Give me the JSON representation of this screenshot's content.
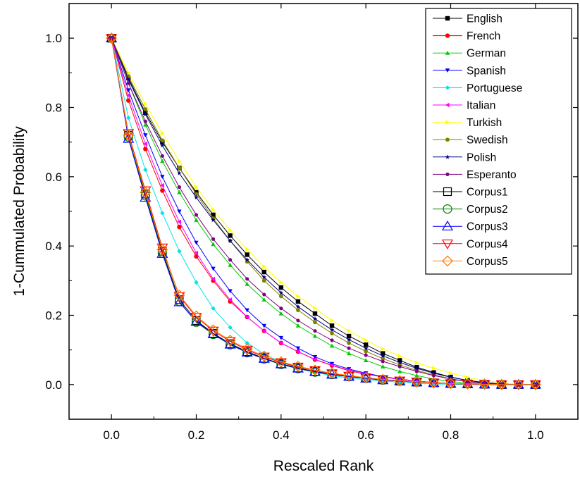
{
  "chart_data": {
    "type": "line",
    "title": "",
    "xlabel": "Rescaled Rank",
    "ylabel": "1-Cummulated Probability",
    "xlim": [
      -0.1,
      1.1
    ],
    "ylim": [
      -0.1,
      1.1
    ],
    "xticks": [
      "0.0",
      "0.2",
      "0.4",
      "0.6",
      "0.8",
      "1.0"
    ],
    "yticks": [
      "0.0",
      "0.2",
      "0.4",
      "0.6",
      "0.8",
      "1.0"
    ],
    "grid": false,
    "legend_position": "top-right",
    "x": [
      0,
      0.04,
      0.08,
      0.12,
      0.16,
      0.2,
      0.24,
      0.28,
      0.32,
      0.36,
      0.4,
      0.44,
      0.48,
      0.52,
      0.56,
      0.6,
      0.64,
      0.68,
      0.72,
      0.76,
      0.8,
      0.84,
      0.88,
      0.92,
      0.96,
      1.0
    ],
    "series": [
      {
        "name": "English",
        "color": "#000000",
        "marker": "square-filled",
        "values": [
          1.0,
          0.885,
          0.785,
          0.7,
          0.625,
          0.555,
          0.49,
          0.43,
          0.375,
          0.325,
          0.28,
          0.24,
          0.205,
          0.17,
          0.14,
          0.115,
          0.09,
          0.07,
          0.05,
          0.035,
          0.022,
          0.012,
          0.006,
          0.002,
          0.0,
          0.0
        ]
      },
      {
        "name": "French",
        "color": "#ff0000",
        "marker": "circle-filled",
        "values": [
          1.0,
          0.82,
          0.68,
          0.56,
          0.455,
          0.37,
          0.3,
          0.24,
          0.195,
          0.155,
          0.12,
          0.095,
          0.072,
          0.055,
          0.04,
          0.03,
          0.022,
          0.015,
          0.01,
          0.006,
          0.003,
          0.001,
          0.0,
          0.0,
          0.0,
          0.0
        ]
      },
      {
        "name": "German",
        "color": "#00cc00",
        "marker": "triangle-up-filled",
        "values": [
          1.0,
          0.87,
          0.75,
          0.645,
          0.555,
          0.475,
          0.405,
          0.345,
          0.29,
          0.245,
          0.205,
          0.17,
          0.14,
          0.112,
          0.09,
          0.07,
          0.052,
          0.038,
          0.026,
          0.016,
          0.009,
          0.004,
          0.001,
          0.0,
          0.0,
          0.0
        ]
      },
      {
        "name": "Spanish",
        "color": "#0000ff",
        "marker": "triangle-down-filled",
        "values": [
          1.0,
          0.85,
          0.72,
          0.6,
          0.5,
          0.41,
          0.335,
          0.27,
          0.215,
          0.17,
          0.135,
          0.105,
          0.08,
          0.06,
          0.045,
          0.033,
          0.023,
          0.016,
          0.01,
          0.006,
          0.003,
          0.001,
          0.0,
          0.0,
          0.0,
          0.0
        ]
      },
      {
        "name": "Portuguese",
        "color": "#00e5e5",
        "marker": "diamond-filled",
        "values": [
          1.0,
          0.77,
          0.62,
          0.495,
          0.385,
          0.295,
          0.22,
          0.165,
          0.12,
          0.088,
          0.065,
          0.048,
          0.035,
          0.026,
          0.019,
          0.014,
          0.01,
          0.007,
          0.004,
          0.002,
          0.001,
          0.0,
          0.0,
          0.0,
          0.0,
          0.0
        ]
      },
      {
        "name": "Italian",
        "color": "#ff00ff",
        "marker": "triangle-left-filled",
        "values": [
          1.0,
          0.835,
          0.695,
          0.575,
          0.47,
          0.38,
          0.305,
          0.245,
          0.195,
          0.155,
          0.12,
          0.095,
          0.073,
          0.056,
          0.042,
          0.031,
          0.022,
          0.015,
          0.01,
          0.006,
          0.003,
          0.001,
          0.0,
          0.0,
          0.0,
          0.0
        ]
      },
      {
        "name": "Turkish",
        "color": "#ffff00",
        "marker": "triangle-right-filled",
        "values": [
          1.0,
          0.9,
          0.81,
          0.725,
          0.645,
          0.57,
          0.505,
          0.445,
          0.39,
          0.34,
          0.295,
          0.255,
          0.22,
          0.185,
          0.155,
          0.128,
          0.103,
          0.082,
          0.063,
          0.047,
          0.033,
          0.021,
          0.012,
          0.005,
          0.001,
          0.0
        ]
      },
      {
        "name": "Swedish",
        "color": "#808000",
        "marker": "hexagon-filled",
        "values": [
          1.0,
          0.89,
          0.795,
          0.705,
          0.625,
          0.55,
          0.48,
          0.415,
          0.355,
          0.3,
          0.255,
          0.215,
          0.18,
          0.148,
          0.12,
          0.096,
          0.075,
          0.057,
          0.041,
          0.028,
          0.017,
          0.009,
          0.004,
          0.001,
          0.0,
          0.0
        ]
      },
      {
        "name": "Polish",
        "color": "#000080",
        "marker": "star-filled",
        "values": [
          1.0,
          0.88,
          0.78,
          0.69,
          0.61,
          0.54,
          0.475,
          0.415,
          0.36,
          0.31,
          0.265,
          0.225,
          0.19,
          0.158,
          0.13,
          0.105,
          0.083,
          0.064,
          0.047,
          0.033,
          0.021,
          0.012,
          0.005,
          0.001,
          0.0,
          0.0
        ]
      },
      {
        "name": "Esperanto",
        "color": "#800080",
        "marker": "circle-filled-small",
        "values": [
          1.0,
          0.87,
          0.76,
          0.66,
          0.57,
          0.49,
          0.42,
          0.36,
          0.305,
          0.26,
          0.22,
          0.185,
          0.155,
          0.128,
          0.105,
          0.085,
          0.067,
          0.052,
          0.038,
          0.026,
          0.016,
          0.008,
          0.003,
          0.001,
          0.0,
          0.0
        ]
      },
      {
        "name": "Corpus1",
        "color": "#000000",
        "marker": "square-open",
        "values": [
          1.0,
          0.72,
          0.55,
          0.385,
          0.245,
          0.185,
          0.148,
          0.118,
          0.095,
          0.076,
          0.06,
          0.048,
          0.038,
          0.03,
          0.024,
          0.019,
          0.014,
          0.01,
          0.007,
          0.005,
          0.003,
          0.002,
          0.001,
          0.0,
          0.0,
          0.0
        ]
      },
      {
        "name": "Corpus2",
        "color": "#008000",
        "marker": "circle-open",
        "values": [
          1.0,
          0.715,
          0.545,
          0.38,
          0.24,
          0.18,
          0.145,
          0.115,
          0.092,
          0.074,
          0.058,
          0.046,
          0.036,
          0.029,
          0.023,
          0.018,
          0.013,
          0.01,
          0.007,
          0.005,
          0.003,
          0.002,
          0.001,
          0.0,
          0.0,
          0.0
        ]
      },
      {
        "name": "Corpus3",
        "color": "#0000ff",
        "marker": "triangle-up-open",
        "values": [
          1.0,
          0.71,
          0.54,
          0.378,
          0.238,
          0.182,
          0.146,
          0.116,
          0.093,
          0.075,
          0.059,
          0.047,
          0.037,
          0.029,
          0.023,
          0.018,
          0.013,
          0.01,
          0.007,
          0.005,
          0.003,
          0.002,
          0.001,
          0.0,
          0.0,
          0.0
        ]
      },
      {
        "name": "Corpus4",
        "color": "#ff0000",
        "marker": "triangle-down-open",
        "values": [
          1.0,
          0.725,
          0.56,
          0.395,
          0.255,
          0.195,
          0.155,
          0.125,
          0.1,
          0.08,
          0.064,
          0.051,
          0.041,
          0.032,
          0.025,
          0.02,
          0.015,
          0.011,
          0.008,
          0.005,
          0.003,
          0.002,
          0.001,
          0.0,
          0.0,
          0.0
        ]
      },
      {
        "name": "Corpus5",
        "color": "#ff8000",
        "marker": "diamond-open",
        "values": [
          1.0,
          0.72,
          0.555,
          0.39,
          0.258,
          0.198,
          0.158,
          0.128,
          0.103,
          0.082,
          0.066,
          0.053,
          0.042,
          0.033,
          0.026,
          0.02,
          0.015,
          0.011,
          0.008,
          0.005,
          0.003,
          0.002,
          0.001,
          0.0,
          0.0,
          0.0
        ]
      }
    ]
  }
}
